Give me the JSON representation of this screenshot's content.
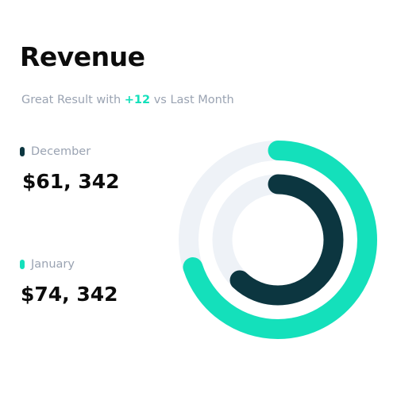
{
  "header": {
    "title": "Revenue",
    "subtitle_prefix": "Great Result with ",
    "subtitle_highlight": "+12",
    "subtitle_suffix": " vs Last Month"
  },
  "legend": [
    {
      "label": "December",
      "value": "$61, 342",
      "color": "#0c3640"
    },
    {
      "label": "January",
      "value": "$74, 342",
      "color": "#14e0bb"
    }
  ],
  "chart_data": {
    "type": "radial_progress",
    "series": [
      {
        "name": "January",
        "ring": "outer",
        "fraction": 0.7,
        "color": "#14e0bb"
      },
      {
        "name": "December",
        "ring": "inner",
        "fraction": 0.62,
        "color": "#0c3640"
      }
    ],
    "track_color": "#eef2f7"
  }
}
